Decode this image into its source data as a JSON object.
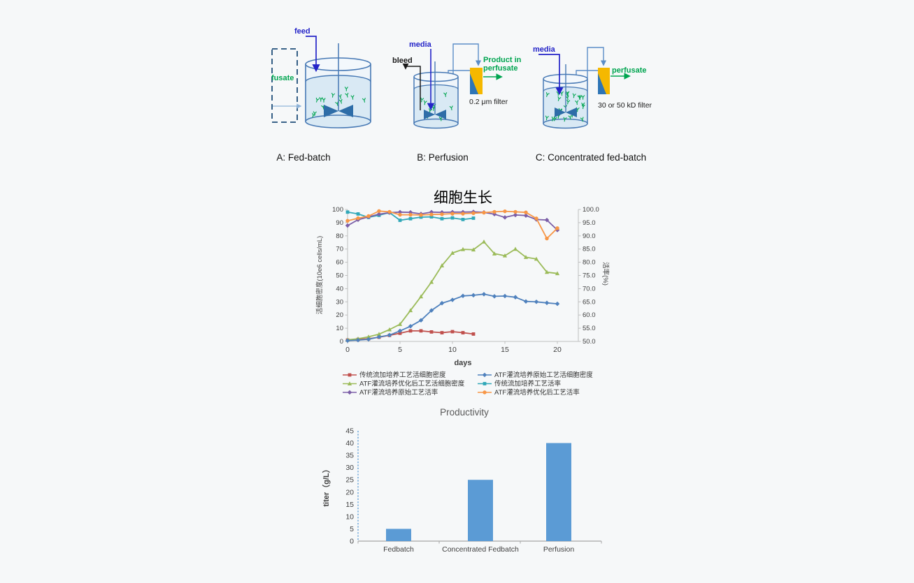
{
  "page": {
    "background": "#f6f8f9"
  },
  "diagrams": {
    "a": {
      "feed": "feed",
      "fusate": "fusate",
      "caption": "A: Fed-batch"
    },
    "b": {
      "media": "media",
      "bleed": "bleed",
      "product_line1": "Product in",
      "product_line2": "perfusate",
      "filter_label": "0.2 μm filter",
      "caption": "B: Perfusion"
    },
    "c": {
      "media": "media",
      "perfusate": "perfusate",
      "filter_label": "30 or 50 kD filter",
      "caption": "C: Concentrated fed-batch"
    },
    "colors": {
      "label_blue": "#2424C8",
      "label_green": "#00A550",
      "label_black": "#1a1a1a",
      "tank_stroke": "#4678B4",
      "liquid_fill": "#D9E9F4",
      "impeller": "#2E6DA8",
      "filter_yellow": "#F5B800",
      "filter_blue": "#2E75B6",
      "pipe": "#5B8DC8",
      "dash_box": "#1F4E79",
      "cell_green": "#00A550"
    }
  },
  "chart_data": [
    {
      "type": "line",
      "title": "细胞生长",
      "xlabel": "days",
      "ylabel_left": "活细胞密度(10e6 cells/mL)",
      "ylabel_right": "活率(%)",
      "x_ticks": [
        0,
        5,
        10,
        15,
        20
      ],
      "ylim_left": [
        0,
        100
      ],
      "ylim_right": [
        50,
        100
      ],
      "y_ticks_left": [
        0,
        10,
        20,
        30,
        40,
        50,
        60,
        70,
        80,
        90,
        100
      ],
      "y_ticks_right": [
        50,
        55,
        60,
        65,
        70,
        75,
        80,
        85,
        90,
        95,
        100
      ],
      "grid": false,
      "legend_position": "bottom",
      "series": [
        {
          "name": "传统流加培养工艺活细胞密度",
          "axis": "left",
          "color": "#C0504D",
          "marker": "square",
          "x": [
            0,
            1,
            2,
            3,
            4,
            5,
            6,
            7,
            8,
            9,
            10,
            11,
            12
          ],
          "values": [
            1.0,
            1.5,
            2.0,
            3.2,
            4.6,
            6.2,
            8.0,
            8.0,
            7.2,
            6.6,
            7.4,
            6.6,
            5.6
          ]
        },
        {
          "name": "ATF灌流培养优化后工艺活细胞密度",
          "axis": "left",
          "color": "#9BBB59",
          "marker": "triangle",
          "x": [
            0,
            1,
            2,
            3,
            4,
            5,
            6,
            7,
            8,
            9,
            10,
            11,
            12,
            13,
            14,
            15,
            16,
            17,
            18,
            19,
            20
          ],
          "values": [
            1.2,
            2.0,
            3.5,
            5.5,
            9.0,
            13.0,
            23.5,
            34.0,
            45.0,
            57.5,
            67.0,
            69.8,
            69.5,
            75.5,
            66.5,
            65.0,
            70.0,
            63.8,
            62.5,
            52.5,
            51.5
          ]
        },
        {
          "name": "ATF灌流培养原始工艺活率",
          "axis": "right",
          "color": "#7B5EA7",
          "marker": "diamond",
          "x": [
            0,
            1,
            2,
            3,
            4,
            5,
            6,
            7,
            8,
            9,
            10,
            11,
            12,
            13,
            14,
            15,
            16,
            17,
            18,
            19,
            20
          ],
          "values": [
            93.9,
            96.1,
            97.2,
            98.2,
            98.8,
            99.0,
            98.9,
            98.3,
            99.0,
            98.9,
            99.0,
            99.0,
            99.1,
            98.9,
            98.2,
            97.0,
            97.9,
            97.7,
            96.2,
            96.0,
            92.2
          ]
        },
        {
          "name": "ATF灌流培养原始工艺活细胞密度",
          "axis": "left",
          "color": "#4F81BD",
          "marker": "diamond",
          "x": [
            0,
            1,
            2,
            3,
            4,
            5,
            6,
            7,
            8,
            9,
            10,
            11,
            12,
            13,
            14,
            15,
            16,
            17,
            18,
            19,
            20
          ],
          "values": [
            0.6,
            1.0,
            1.6,
            3.4,
            4.8,
            8.0,
            11.5,
            16.0,
            23.5,
            29.0,
            31.5,
            34.5,
            35.0,
            35.8,
            34.2,
            34.4,
            33.5,
            30.3,
            30.0,
            29.2,
            28.5
          ]
        },
        {
          "name": "传统流加培养工艺活率",
          "axis": "right",
          "color": "#31A8B8",
          "marker": "square",
          "x": [
            0,
            1,
            2,
            3,
            4,
            5,
            6,
            7,
            8,
            9,
            10,
            11,
            12
          ],
          "values": [
            99.0,
            98.3,
            97.0,
            97.8,
            98.8,
            95.9,
            96.5,
            97.1,
            97.2,
            96.5,
            96.8,
            96.2,
            96.7
          ]
        },
        {
          "name": "ATF灌流培养优化后工艺活率",
          "axis": "right",
          "color": "#F79646",
          "marker": "circle",
          "x": [
            0,
            1,
            2,
            3,
            4,
            5,
            6,
            7,
            8,
            9,
            10,
            11,
            12,
            13,
            14,
            15,
            16,
            17,
            18,
            19,
            20
          ],
          "values": [
            95.7,
            96.7,
            97.5,
            99.4,
            99.1,
            98.0,
            98.0,
            97.9,
            98.1,
            98.2,
            98.4,
            98.4,
            98.6,
            98.8,
            99.1,
            99.3,
            99.1,
            98.9,
            96.6,
            89.0,
            92.9
          ]
        }
      ]
    },
    {
      "type": "bar",
      "title": "Productivity",
      "ylabel": "titer（g/L）",
      "categories": [
        "Fedbatch",
        "Concentrated Fedbatch",
        "Perfusion"
      ],
      "values": [
        5,
        25,
        40
      ],
      "bar_color": "#5B9BD5",
      "ylim": [
        0,
        45
      ],
      "y_ticks": [
        0,
        5,
        10,
        15,
        20,
        25,
        30,
        35,
        40,
        45
      ],
      "grid": false
    }
  ]
}
